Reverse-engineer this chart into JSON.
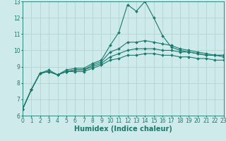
{
  "xlabel": "Humidex (Indice chaleur)",
  "xlim": [
    0,
    23
  ],
  "ylim": [
    6,
    13
  ],
  "xticks": [
    0,
    1,
    2,
    3,
    4,
    5,
    6,
    7,
    8,
    9,
    10,
    11,
    12,
    13,
    14,
    15,
    16,
    17,
    18,
    19,
    20,
    21,
    22,
    23
  ],
  "yticks": [
    6,
    7,
    8,
    9,
    10,
    11,
    12,
    13
  ],
  "background_color": "#ceeaea",
  "grid_color": "#aed0d0",
  "line_color": "#1a7a6e",
  "series": [
    [
      6.4,
      7.6,
      8.6,
      8.8,
      8.5,
      8.8,
      8.9,
      8.9,
      9.2,
      9.4,
      10.3,
      11.1,
      12.8,
      12.4,
      13.0,
      12.0,
      10.9,
      10.2,
      10.0,
      9.9,
      9.8,
      9.7,
      9.7,
      9.7
    ],
    [
      6.4,
      7.6,
      8.6,
      8.7,
      8.5,
      8.7,
      8.8,
      8.8,
      9.1,
      9.3,
      9.9,
      10.1,
      10.5,
      10.5,
      10.6,
      10.5,
      10.4,
      10.3,
      10.1,
      10.0,
      9.9,
      9.8,
      9.7,
      9.7
    ],
    [
      6.4,
      7.6,
      8.6,
      8.7,
      8.5,
      8.7,
      8.8,
      8.8,
      9.0,
      9.2,
      9.6,
      9.8,
      10.0,
      10.1,
      10.1,
      10.1,
      10.0,
      10.0,
      9.9,
      9.9,
      9.8,
      9.7,
      9.7,
      9.6
    ],
    [
      6.4,
      7.6,
      8.6,
      8.7,
      8.5,
      8.7,
      8.7,
      8.7,
      8.9,
      9.1,
      9.4,
      9.5,
      9.7,
      9.7,
      9.8,
      9.8,
      9.7,
      9.7,
      9.6,
      9.6,
      9.5,
      9.5,
      9.4,
      9.4
    ]
  ],
  "marker": "D",
  "markersize": 2.0,
  "linewidth": 0.8,
  "font_color": "#1a7a6e",
  "tick_fontsize": 5.5,
  "xlabel_fontsize": 7
}
